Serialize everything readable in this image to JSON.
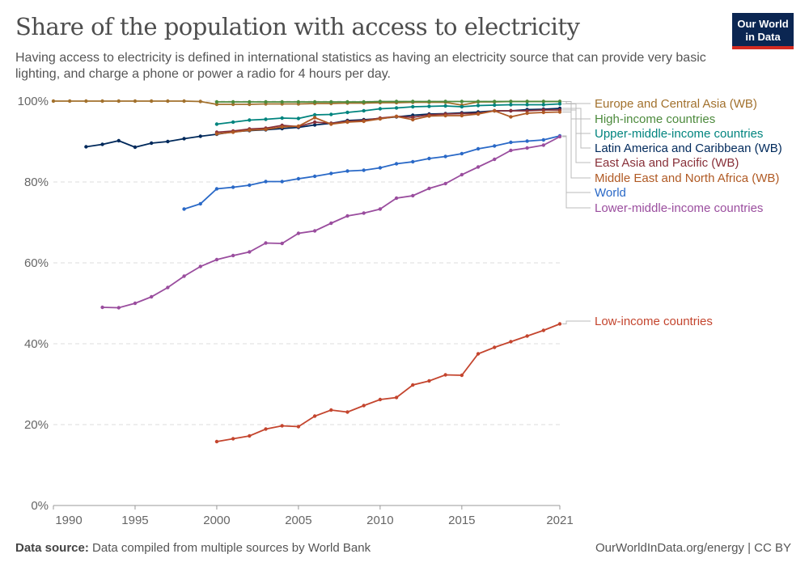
{
  "header": {
    "title": "Share of the population with access to electricity",
    "subtitle": "Having access to electricity is defined in international statistics as having an electricity source that can provide very basic lighting, and charge a phone or power a radio for 4 hours per day.",
    "logo": "Our World in Data"
  },
  "footer": {
    "source_label": "Data source:",
    "source_text": "Data compiled from multiple sources by World Bank",
    "credit": "OurWorldInData.org/energy | CC BY"
  },
  "chart_data": {
    "type": "line",
    "title": "Share of the population with access to electricity",
    "xlim": [
      1990,
      2021
    ],
    "ylim": [
      0,
      100
    ],
    "x_ticks": [
      "1990",
      "1995",
      "2000",
      "2005",
      "2010",
      "2015",
      "2021"
    ],
    "x_tick_values": [
      1990,
      1995,
      2000,
      2005,
      2010,
      2015,
      2021
    ],
    "y_ticks": [
      "0%",
      "20%",
      "40%",
      "60%",
      "80%",
      "100%"
    ],
    "y_tick_values": [
      0,
      20,
      40,
      60,
      80,
      100
    ],
    "grid": "horizontal dashed",
    "legend": "right, direct labels",
    "series": [
      {
        "name": "Europe and Central Asia (WB)",
        "color": "#a2712d",
        "start": 1990,
        "values": [
          100,
          100,
          100,
          100,
          100,
          100,
          100,
          100,
          100,
          99.9,
          99.2,
          99.2,
          99.2,
          99.3,
          99.3,
          99.3,
          99.4,
          99.4,
          99.5,
          99.5,
          99.6,
          99.6,
          99.7,
          99.7,
          99.7,
          99.0,
          99.8,
          99.8,
          99.9,
          99.9,
          99.9,
          99.9
        ]
      },
      {
        "name": "High-income countries",
        "color": "#4c8a3c",
        "start": 2000,
        "values": [
          99.8,
          99.8,
          99.8,
          99.8,
          99.8,
          99.8,
          99.8,
          99.8,
          99.8,
          99.8,
          99.9,
          99.9,
          99.9,
          99.9,
          99.9,
          99.9,
          99.9,
          99.9,
          99.9,
          99.9,
          99.9,
          99.9
        ]
      },
      {
        "name": "Upper-middle-income countries",
        "color": "#00847e",
        "start": 2000,
        "values": [
          94.3,
          94.8,
          95.3,
          95.5,
          95.8,
          95.7,
          96.6,
          96.7,
          97.2,
          97.6,
          98.1,
          98.3,
          98.6,
          98.7,
          98.8,
          98.6,
          98.9,
          99.0,
          99.1,
          99.1,
          99.1,
          99.3
        ]
      },
      {
        "name": "Latin America and Caribbean (WB)",
        "color": "#00295b",
        "start": 1992,
        "values": [
          88.7,
          89.3,
          90.2,
          88.6,
          89.6,
          90.0,
          90.7,
          91.3,
          91.8,
          92.4,
          92.7,
          92.9,
          93.2,
          93.5,
          94.1,
          94.5,
          95.2,
          95.4,
          95.7,
          96.1,
          96.5,
          96.8,
          96.9,
          97.1,
          97.3,
          97.6,
          97.6,
          97.9,
          98.0,
          98.2
        ]
      },
      {
        "name": "East Asia and Pacific (WB)",
        "color": "#883039",
        "start": 2000,
        "values": [
          92.3,
          92.6,
          93.1,
          93.3,
          94.0,
          93.7,
          94.8,
          94.5,
          95.0,
          95.2,
          95.8,
          96.2,
          96.0,
          96.6,
          96.8,
          96.9,
          97.0,
          97.6,
          97.6,
          97.6,
          97.8,
          97.8
        ]
      },
      {
        "name": "Middle East and North Africa (WB)",
        "color": "#b05a24",
        "start": 2000,
        "values": [
          91.9,
          92.3,
          92.8,
          93.0,
          93.6,
          93.8,
          95.9,
          94.3,
          94.8,
          95.0,
          95.6,
          96.2,
          95.4,
          96.3,
          96.4,
          96.4,
          96.8,
          97.6,
          96.1,
          97.0,
          97.2,
          97.3
        ]
      },
      {
        "name": "World",
        "color": "#2a69c7",
        "start": 1998,
        "values": [
          73.3,
          74.6,
          78.3,
          78.7,
          79.2,
          80.1,
          80.1,
          80.8,
          81.4,
          82.1,
          82.7,
          82.9,
          83.5,
          84.5,
          85.0,
          85.8,
          86.3,
          87.0,
          88.2,
          88.9,
          89.8,
          90.1,
          90.4,
          91.4
        ]
      },
      {
        "name": "Lower-middle-income countries",
        "color": "#9a4d9e",
        "start": 1993,
        "values": [
          49.0,
          48.9,
          50.0,
          51.6,
          53.9,
          56.7,
          59.1,
          60.8,
          61.8,
          62.7,
          64.9,
          64.8,
          67.3,
          67.9,
          69.8,
          71.6,
          72.3,
          73.3,
          76.0,
          76.6,
          78.4,
          79.6,
          81.8,
          83.7,
          85.6,
          87.8,
          88.4,
          89.1,
          91.2
        ]
      },
      {
        "name": "Low-income countries",
        "color": "#c4452e",
        "start": 2000,
        "values": [
          15.8,
          16.5,
          17.2,
          18.9,
          19.7,
          19.5,
          22.1,
          23.6,
          23.1,
          24.7,
          26.2,
          26.7,
          29.8,
          30.8,
          32.3,
          32.2,
          37.5,
          39.1,
          40.5,
          41.9,
          43.3,
          44.9
        ]
      }
    ]
  }
}
